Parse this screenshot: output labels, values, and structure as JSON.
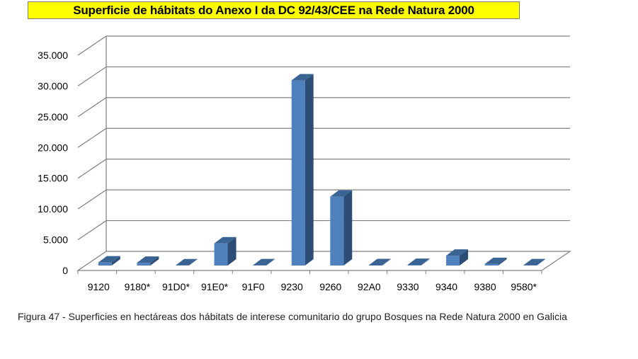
{
  "chart_data": {
    "type": "bar",
    "title": "Superficie de hábitats do Anexo I da DC 92/43/CEE na Rede Natura 2000",
    "categories": [
      "9120",
      "9180*",
      "91D0*",
      "91E0*",
      "91F0",
      "9230",
      "9260",
      "92A0",
      "9330",
      "9340",
      "9380",
      "9580*"
    ],
    "values": [
      500,
      450,
      30,
      3600,
      50,
      30100,
      11200,
      60,
      100,
      1600,
      250,
      40
    ],
    "ylim": [
      0,
      35000
    ],
    "yticks": [
      "0",
      "5.000",
      "10.000",
      "15.000",
      "20.000",
      "25.000",
      "30.000",
      "35.000"
    ],
    "grid": true,
    "legend": "none",
    "colors": {
      "bar_front": "#4f81bd",
      "bar_side": "#2c4d75",
      "bar_top": "#3a6493",
      "grid": "#7f7f7f",
      "title_bg": "#ffff00"
    }
  },
  "caption": "Figura 47 - Superficies en hectáreas dos hábitats de interese comunitario do grupo Bosques na Rede Natura 2000 en Galicia"
}
